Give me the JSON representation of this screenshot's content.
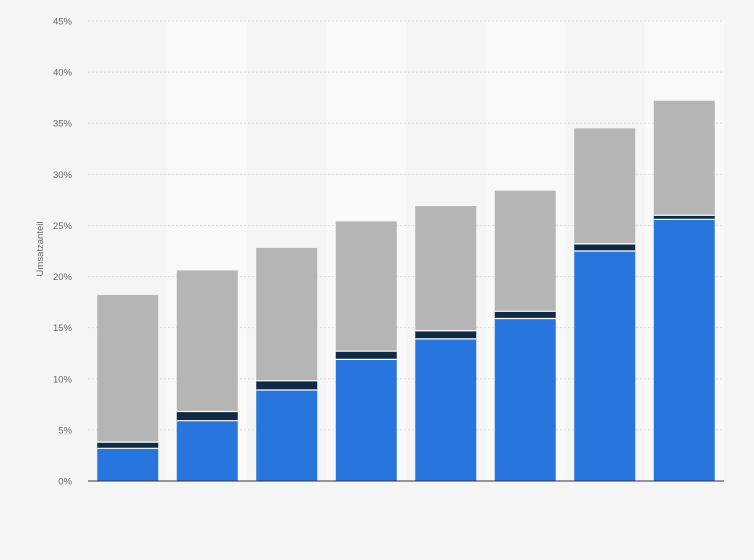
{
  "chart_data": {
    "type": "bar",
    "stacked": true,
    "title": "",
    "xlabel": "",
    "ylabel": "Umsatzanteil",
    "ylim": [
      0,
      45
    ],
    "y_ticks": [
      "0%",
      "5%",
      "10%",
      "15%",
      "20%",
      "25%",
      "30%",
      "35%",
      "40%",
      "45%"
    ],
    "grid": true,
    "legend": "none",
    "categories": [
      "",
      "",
      "",
      "",
      "",
      "",
      "",
      ""
    ],
    "series": [
      {
        "color": "#2876dd",
        "values": [
          3.2,
          5.9,
          8.9,
          11.9,
          13.9,
          15.9,
          22.5,
          25.6
        ]
      },
      {
        "color": "#0f2a44",
        "values": [
          0.6,
          0.9,
          0.9,
          0.8,
          0.8,
          0.7,
          0.7,
          0.4
        ]
      },
      {
        "color": "#b5b5b5",
        "values": [
          14.4,
          13.8,
          13.0,
          12.7,
          12.2,
          11.8,
          11.3,
          11.2
        ]
      }
    ],
    "colors": {
      "background": "#f5f5f5",
      "band": "#f9f9f9",
      "separator": "#ffffff"
    }
  }
}
